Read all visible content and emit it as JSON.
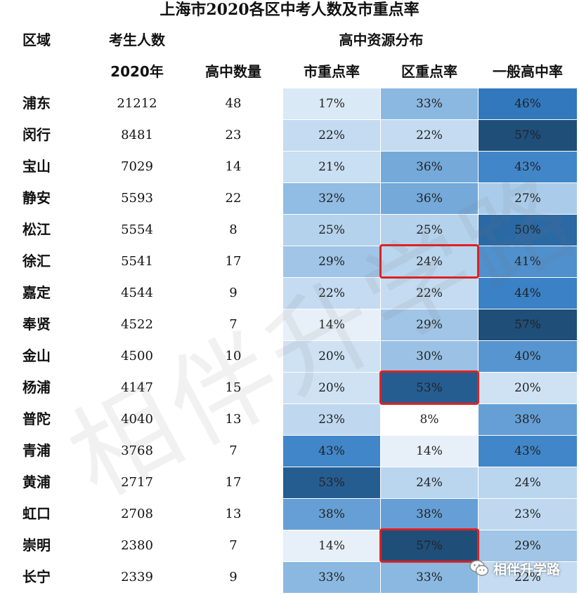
{
  "title": "上海市2020各区中考人数及市重点率",
  "headers": {
    "region": "区域",
    "examinees": "考生人数",
    "year": "2020年",
    "hs_count": "高中数量",
    "resource": "高中资源分布",
    "city_key": "市重点率",
    "district_key": "区重点率",
    "general": "一般高中率"
  },
  "watermark": "相伴升学路",
  "badge": {
    "icon": "wechat-icon",
    "text": "相伴升学路"
  },
  "colors": {
    "scale_low": "#ffffff",
    "scale_high": "#1f4e79",
    "highlight": "#e02020"
  },
  "chart_data": {
    "type": "heatmap",
    "title": "上海市2020各区中考人数及市重点率",
    "columns": [
      "区域",
      "考生人数 2020年",
      "高中数量",
      "市重点率",
      "区重点率",
      "一般高中率"
    ],
    "value_range": [
      8,
      57
    ],
    "rows": [
      {
        "region": "浦东",
        "examinees": "21212",
        "hs_count": "48",
        "city": "17%",
        "district": "33%",
        "general": "46%",
        "city_v": 17,
        "district_v": 33,
        "general_v": 46
      },
      {
        "region": "闵行",
        "examinees": "8481",
        "hs_count": "23",
        "city": "22%",
        "district": "22%",
        "general": "57%",
        "city_v": 22,
        "district_v": 22,
        "general_v": 57
      },
      {
        "region": "宝山",
        "examinees": "7029",
        "hs_count": "14",
        "city": "21%",
        "district": "36%",
        "general": "43%",
        "city_v": 21,
        "district_v": 36,
        "general_v": 43
      },
      {
        "region": "静安",
        "examinees": "5593",
        "hs_count": "22",
        "city": "32%",
        "district": "36%",
        "general": "27%",
        "city_v": 32,
        "district_v": 36,
        "general_v": 27
      },
      {
        "region": "松江",
        "examinees": "5554",
        "hs_count": "8",
        "city": "25%",
        "district": "25%",
        "general": "50%",
        "city_v": 25,
        "district_v": 25,
        "general_v": 50
      },
      {
        "region": "徐汇",
        "examinees": "5541",
        "hs_count": "17",
        "city": "29%",
        "district": "24%",
        "general": "41%",
        "city_v": 29,
        "district_v": 24,
        "general_v": 41
      },
      {
        "region": "嘉定",
        "examinees": "4544",
        "hs_count": "9",
        "city": "22%",
        "district": "22%",
        "general": "44%",
        "city_v": 22,
        "district_v": 22,
        "general_v": 44
      },
      {
        "region": "奉贤",
        "examinees": "4522",
        "hs_count": "7",
        "city": "14%",
        "district": "29%",
        "general": "57%",
        "city_v": 14,
        "district_v": 29,
        "general_v": 57
      },
      {
        "region": "金山",
        "examinees": "4500",
        "hs_count": "10",
        "city": "20%",
        "district": "30%",
        "general": "40%",
        "city_v": 20,
        "district_v": 30,
        "general_v": 40
      },
      {
        "region": "杨浦",
        "examinees": "4147",
        "hs_count": "15",
        "city": "20%",
        "district": "53%",
        "general": "20%",
        "city_v": 20,
        "district_v": 53,
        "general_v": 20
      },
      {
        "region": "普陀",
        "examinees": "4040",
        "hs_count": "13",
        "city": "23%",
        "district": "8%",
        "general": "38%",
        "city_v": 23,
        "district_v": 8,
        "general_v": 38
      },
      {
        "region": "青浦",
        "examinees": "3768",
        "hs_count": "7",
        "city": "43%",
        "district": "14%",
        "general": "43%",
        "city_v": 43,
        "district_v": 14,
        "general_v": 43
      },
      {
        "region": "黄浦",
        "examinees": "2717",
        "hs_count": "17",
        "city": "53%",
        "district": "24%",
        "general": "24%",
        "city_v": 53,
        "district_v": 24,
        "general_v": 24
      },
      {
        "region": "虹口",
        "examinees": "2708",
        "hs_count": "13",
        "city": "38%",
        "district": "38%",
        "general": "23%",
        "city_v": 38,
        "district_v": 38,
        "general_v": 23
      },
      {
        "region": "崇明",
        "examinees": "2380",
        "hs_count": "7",
        "city": "14%",
        "district": "57%",
        "general": "29%",
        "city_v": 14,
        "district_v": 57,
        "general_v": 29
      },
      {
        "region": "长宁",
        "examinees": "2339",
        "hs_count": "9",
        "city": "33%",
        "district": "33%",
        "general": "22%",
        "city_v": 33,
        "district_v": 33,
        "general_v": 22
      }
    ],
    "highlighted_cells": [
      {
        "region": "徐汇",
        "column": "区重点率"
      },
      {
        "region": "杨浦",
        "column": "区重点率"
      },
      {
        "region": "崇明",
        "column": "区重点率"
      }
    ]
  }
}
